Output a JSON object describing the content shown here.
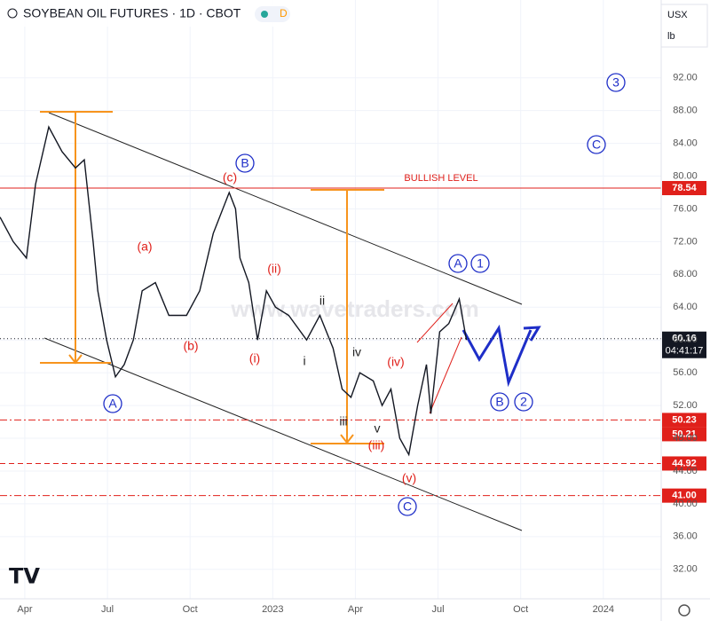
{
  "header": {
    "title": "SOYBEAN OIL FUTURES · 1D · CBOT",
    "badge": "D",
    "currency": "USX",
    "unit": "lb"
  },
  "watermark": "www.wavetraders.com",
  "annotations": [
    "(a)",
    "(b)",
    "(c)",
    "B",
    "(i)",
    "(ii)",
    "i",
    "ii",
    "iii",
    "iv",
    "v",
    "(iii)",
    "(iv)",
    "(v)",
    "C",
    "A",
    "A",
    "1",
    "B",
    "2",
    "3",
    "C",
    "BULLISH LEVEL"
  ],
  "chart_data": {
    "type": "line",
    "x": [
      2.1,
      2.58,
      3.06,
      3.39,
      3.87,
      4.35,
      4.84,
      5.16,
      5.48,
      5.65,
      5.97,
      6.29,
      6.61,
      6.94,
      7.26,
      7.74,
      8.23,
      8.87,
      9.35,
      9.84,
      10.42,
      10.65,
      10.81,
      11.13,
      11.45,
      11.77,
      12.1,
      12.58,
      13.23,
      13.71,
      14.19,
      14.52,
      14.84,
      15.16,
      15.65,
      15.97,
      16.29,
      16.61,
      16.94,
      17.26,
      17.58,
      17.74,
      18.06,
      18.39,
      18.77,
      19.03
    ],
    "series": [
      {
        "name": "SOYBEAN OIL FUTURES",
        "color": "#131722",
        "values": [
          75,
          72,
          70,
          79,
          86,
          83,
          81,
          82,
          72,
          66,
          60,
          55.5,
          57,
          60,
          66,
          67,
          63,
          63,
          66,
          73,
          78,
          76,
          70,
          67,
          60,
          66,
          64,
          63,
          60,
          63,
          59,
          54,
          53,
          56,
          55,
          52,
          54,
          48,
          46,
          52,
          57,
          51,
          61,
          62,
          65,
          60
        ]
      }
    ],
    "xlim": [
      2.1,
      26.1
    ],
    "xticks": [
      {
        "value": 3,
        "label": "Apr"
      },
      {
        "value": 6,
        "label": "Jul"
      },
      {
        "value": 9,
        "label": "Oct"
      },
      {
        "value": 12,
        "label": "2023"
      },
      {
        "value": 15,
        "label": "Apr"
      },
      {
        "value": 18,
        "label": "Jul"
      },
      {
        "value": 21,
        "label": "Oct"
      },
      {
        "value": 24,
        "label": "2024"
      }
    ],
    "ylim": [
      28.4,
      101.5
    ],
    "yticks": [
      {
        "value": 92,
        "label": "92.00"
      },
      {
        "value": 88,
        "label": "88.00"
      },
      {
        "value": 84,
        "label": "84.00"
      },
      {
        "value": 80,
        "label": "80.00"
      },
      {
        "value": 76,
        "label": "76.00"
      },
      {
        "value": 72,
        "label": "72.00"
      },
      {
        "value": 68,
        "label": "68.00"
      },
      {
        "value": 64,
        "label": "64.00"
      },
      {
        "value": 60,
        "label": "60.00"
      },
      {
        "value": 56,
        "label": "56.00"
      },
      {
        "value": 52,
        "label": "52.00"
      },
      {
        "value": 48,
        "label": "48.00"
      },
      {
        "value": 44,
        "label": "44.00"
      },
      {
        "value": 40,
        "label": "40.00"
      },
      {
        "value": 36,
        "label": "36.00"
      },
      {
        "value": 32,
        "label": "32.00"
      }
    ],
    "grid": true,
    "levels": [
      {
        "value": 78.54,
        "label": "78.54",
        "color": "#e0201b",
        "style": "solid"
      },
      {
        "value": 60.16,
        "label": "60.16",
        "note": "04:41:17",
        "color": "#131722",
        "style": "dotted"
      },
      {
        "value": 50.23,
        "label": "50.23",
        "color": "#e0201b",
        "style": "dashdot"
      },
      {
        "value": 50.21,
        "label": "50.21",
        "color": "#e0201b",
        "style": "none"
      },
      {
        "value": 44.92,
        "label": "44.92",
        "color": "#e0201b",
        "style": "dashed"
      },
      {
        "value": 41.0,
        "label": "41.00",
        "color": "#e0201b",
        "style": "dashdot"
      }
    ]
  }
}
